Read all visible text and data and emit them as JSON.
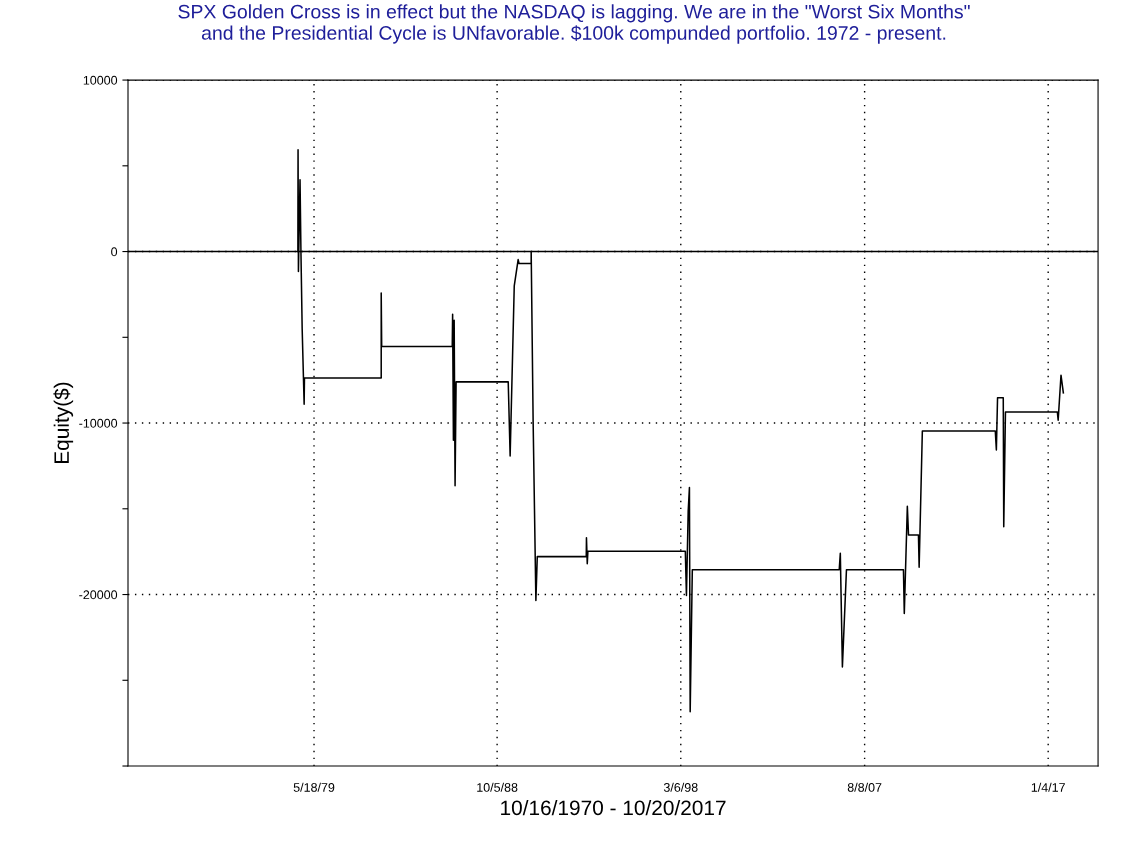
{
  "chart_data": {
    "type": "line",
    "title": "SPX Golden Cross is in effect but the NASDAQ is lagging. We are in the \"Worst Six Months\"\nand the Presidential Cycle is UNfavorable. $100k compunded portfolio. 1972 - present.",
    "xlabel": "10/16/1970 - 10/20/2017",
    "ylabel": "Equity($)",
    "x": [
      "1978-07-20",
      "1978-07-23",
      "1978-07-30",
      "1978-08-29",
      "1978-09-15",
      "1978-10-08",
      "1978-11-14",
      "1978-11-20",
      "1982-10-27",
      "1982-10-27",
      "1982-11-05",
      "1986-06-18",
      "1986-06-25",
      "1986-07-10",
      "1986-07-24",
      "1986-08-10",
      "1986-08-29",
      "1989-05-01",
      "1989-06-06",
      "1989-08-22",
      "1989-11-03",
      "1989-11-20",
      "1990-07-05",
      "1990-07-05",
      "1990-08-11",
      "1990-10-01",
      "1990-10-27",
      "1993-05-01",
      "1993-05-05",
      "1993-05-20",
      "1993-06-01",
      "1998-05-30",
      "1998-06-20",
      "1998-07-23",
      "1998-08-15",
      "1998-08-29",
      "1998-10-08",
      "2006-04-20",
      "2006-05-10",
      "2006-06-18",
      "2006-09-02",
      "2009-08-04",
      "2009-08-20",
      "2009-10-16",
      "2009-11-07",
      "2010-05-12",
      "2010-05-25",
      "2010-07-24",
      "2014-04-20",
      "2014-05-10",
      "2014-06-01",
      "2014-09-16",
      "2014-09-25",
      "2014-10-27",
      "2017-06-25",
      "2017-07-10",
      "2017-09-01",
      "2017-10-15"
    ],
    "series": [
      {
        "color": "#000000",
        "values": [
          0,
          5930,
          -1160,
          4190,
          0,
          -4500,
          -8900,
          -7370,
          -7370,
          -2420,
          -5530,
          -5530,
          -3660,
          -11000,
          -4000,
          -13660,
          -7600,
          -7600,
          -11920,
          -2000,
          -470,
          -700,
          -700,
          0,
          -10000,
          -20350,
          -17790,
          -17790,
          -16690,
          -18200,
          -17480,
          -17480,
          -20060,
          -15120,
          -13760,
          -26840,
          -18550,
          -18550,
          -17600,
          -24220,
          -18550,
          -18550,
          -21100,
          -14860,
          -16530,
          -16530,
          -18410,
          -10470,
          -10470,
          -11570,
          -8530,
          -8530,
          -16050,
          -9360,
          -9360,
          -9830,
          -7210,
          -8240
        ]
      }
    ],
    "xlim": [
      "1969-11-03",
      "2019-07-27"
    ],
    "xticks": [
      {
        "value": "1979-05-18",
        "label": "5/18/79"
      },
      {
        "value": "1988-10-05",
        "label": "10/5/88"
      },
      {
        "value": "1998-03-06",
        "label": "3/6/98"
      },
      {
        "value": "2007-08-08",
        "label": "8/8/07"
      },
      {
        "value": "2017-01-04",
        "label": "1/4/17"
      }
    ],
    "ylim": [
      -30000,
      10000
    ],
    "yticks": [
      10000,
      {
        "value": 5000,
        "label": null
      },
      0,
      {
        "value": -5000,
        "label": null
      },
      -10000,
      {
        "value": -15000,
        "label": null
      },
      -20000,
      {
        "value": -25000,
        "label": null
      },
      {
        "value": -30000,
        "label": null
      }
    ],
    "ref_lines": [
      {
        "axis": "y",
        "value": 0,
        "color": "#000000",
        "line_style": "solid"
      }
    ],
    "grid": true,
    "legend": false,
    "marker": "none",
    "line_style": "solid"
  }
}
